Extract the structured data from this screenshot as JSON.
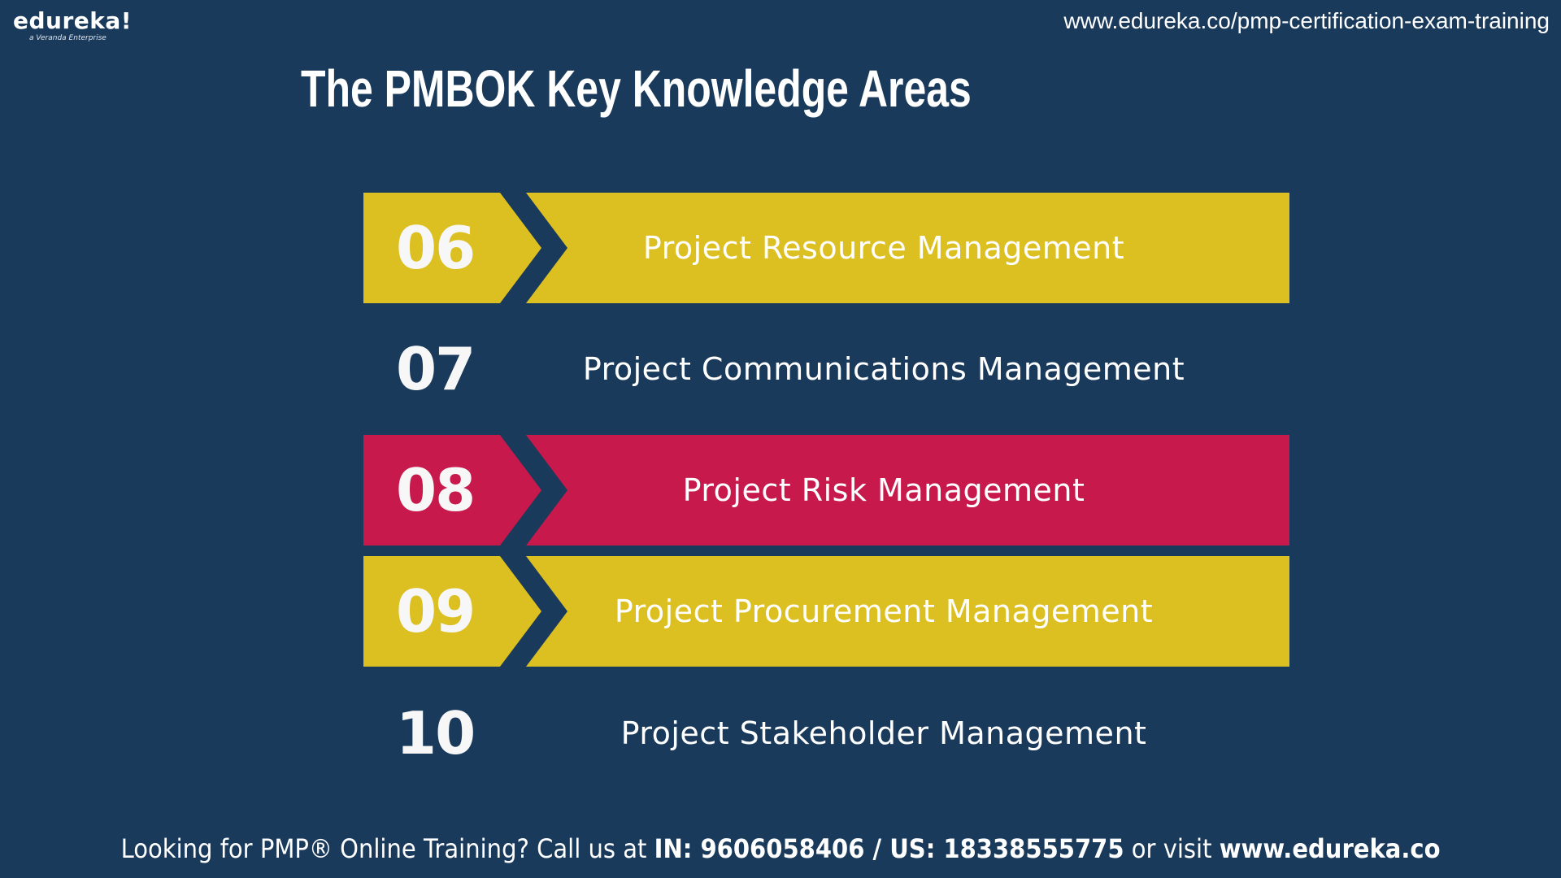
{
  "logo": {
    "name": "edureka!",
    "subtitle": "a Veranda Enterprise"
  },
  "header": {
    "url": "www.edureka.co/pmp-certification-exam-training"
  },
  "title": "The PMBOK Key Knowledge Areas",
  "colors": {
    "background": "#1a3a5c",
    "yellow": "#dcbf21",
    "red": "#c7194b"
  },
  "areas": [
    {
      "number": "06",
      "label": "Project Resource Management",
      "highlight": "yellow"
    },
    {
      "number": "07",
      "label": "Project Communications Management",
      "highlight": "none"
    },
    {
      "number": "08",
      "label": "Project Risk Management",
      "highlight": "red"
    },
    {
      "number": "09",
      "label": "Project Procurement Management",
      "highlight": "yellow"
    },
    {
      "number": "10",
      "label": "Project Stakeholder Management",
      "highlight": "none"
    }
  ],
  "footer": {
    "lead": "Looking for PMP® Online Training? Call us at ",
    "phones": "IN: 9606058406 / US: 18338555775",
    "middle": " or visit ",
    "site": "www.edureka.co"
  }
}
